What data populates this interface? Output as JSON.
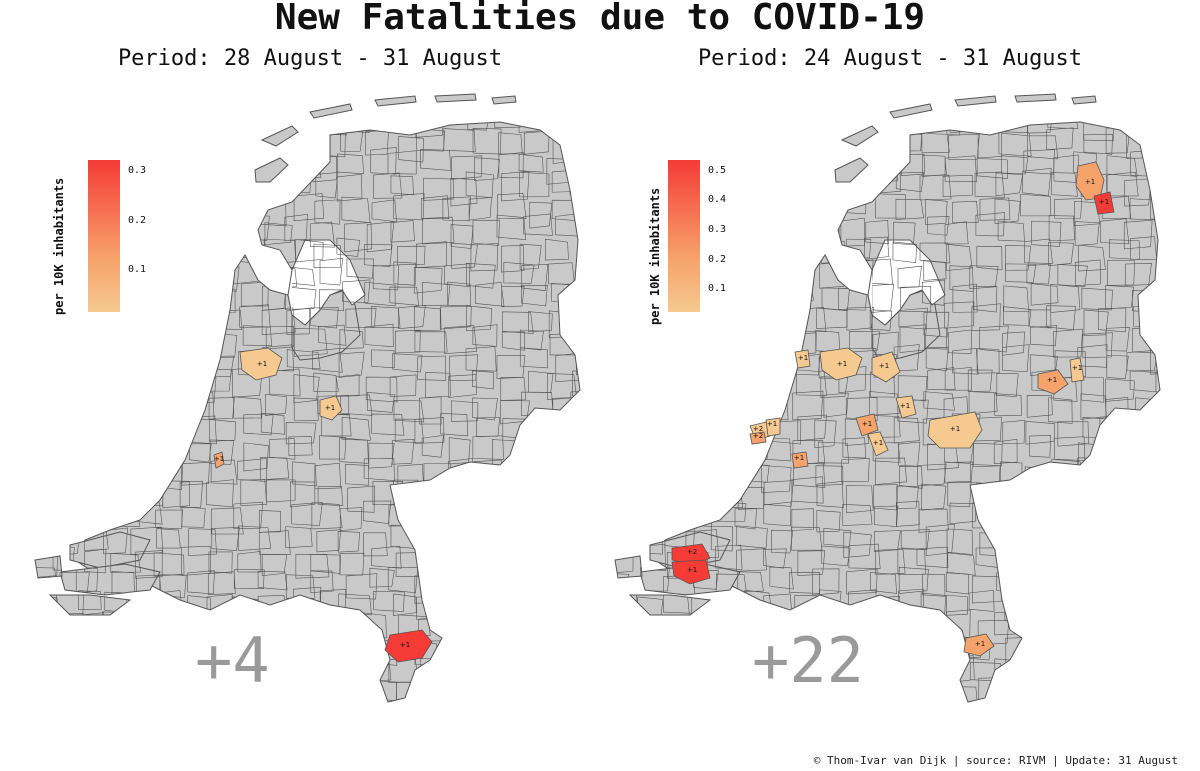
{
  "title": "New Fatalities due to COVID-19",
  "footer": "© Thom-Ivar van Dijk | source: RIVM | Update: 31 August",
  "colors": {
    "land": "#c9c9c9",
    "border": "#555555",
    "low": "#f5c98f",
    "mid": "#f6a36b",
    "high": "#f53b36",
    "total": "#9a9a9a"
  },
  "maps": [
    {
      "subtitle": "Period: 28 August - 31 August",
      "total": "+4",
      "legend": {
        "title": "per 10K inhabitants",
        "ticks": [
          "0.3",
          "0.2",
          "0.1"
        ]
      },
      "markers": [
        {
          "label": "+1",
          "level": "low"
        },
        {
          "label": "+1",
          "level": "low"
        },
        {
          "label": "+1",
          "level": "mid"
        },
        {
          "label": "+1",
          "level": "high"
        }
      ]
    },
    {
      "subtitle": "Period: 24 August - 31 August",
      "total": "+22",
      "legend": {
        "title": "per 10K inhabitants",
        "ticks": [
          "0.5",
          "0.4",
          "0.3",
          "0.2",
          "0.1"
        ]
      },
      "markers": [
        {
          "label": "+1",
          "level": "mid"
        },
        {
          "label": "+1",
          "level": "high"
        },
        {
          "label": "+1",
          "level": "low"
        },
        {
          "label": "+1",
          "level": "low"
        },
        {
          "label": "+1",
          "level": "low"
        },
        {
          "label": "+1",
          "level": "mid"
        },
        {
          "label": "+1",
          "level": "low"
        },
        {
          "label": "+1",
          "level": "low"
        },
        {
          "label": "+1",
          "level": "low"
        },
        {
          "label": "+1",
          "level": "mid"
        },
        {
          "label": "+1",
          "level": "low"
        },
        {
          "label": "+2",
          "level": "low"
        },
        {
          "label": "+1",
          "level": "low"
        },
        {
          "label": "+2",
          "level": "mid"
        },
        {
          "label": "+1",
          "level": "mid"
        },
        {
          "label": "+2",
          "level": "high"
        },
        {
          "label": "+1",
          "level": "high"
        },
        {
          "label": "+1",
          "level": "mid"
        }
      ]
    }
  ]
}
